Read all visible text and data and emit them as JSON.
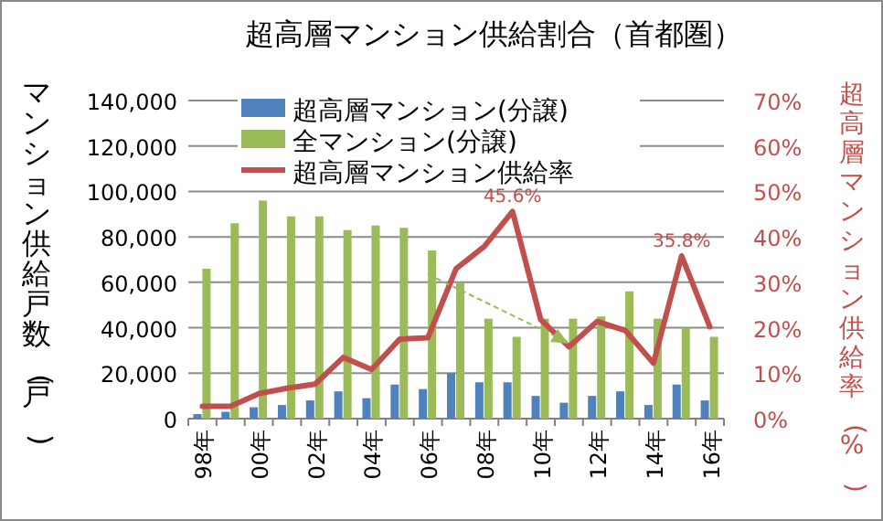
{
  "chart_data": {
    "type": "bar",
    "title": "超高層マンション供給割合（首都圏）",
    "ylabel": "マンション供給戸数(戸)",
    "y2label": "超高層マンション供給率(%)",
    "categories": [
      "98年",
      null,
      "00年",
      null,
      "02年",
      null,
      "04年",
      null,
      "06年",
      null,
      "08年",
      null,
      "10年",
      null,
      "12年",
      null,
      "14年",
      null,
      "16年"
    ],
    "series": [
      {
        "name": "超高層マンション(分譲)",
        "color": "#4f81bd",
        "values": [
          2000,
          3000,
          5000,
          6000,
          8000,
          12000,
          9000,
          15000,
          13000,
          20000,
          16000,
          16000,
          10000,
          7000,
          10000,
          12000,
          6000,
          15000,
          8000
        ]
      },
      {
        "name": "全マンション(分譲)",
        "color": "#9bbb59",
        "values": [
          66000,
          86000,
          96000,
          89000,
          89000,
          83000,
          85000,
          84000,
          74000,
          60000,
          44000,
          36000,
          44000,
          44000,
          45000,
          56000,
          44000,
          40000,
          36000
        ]
      },
      {
        "name": "超高層マンション供給率",
        "type": "line",
        "axis": "y2",
        "color": "#c0504d",
        "values": [
          2.7,
          2.7,
          5.5,
          6.7,
          7.6,
          13.5,
          10.8,
          17.5,
          17.8,
          33.0,
          37.9,
          45.6,
          21.8,
          15.8,
          21.4,
          19.4,
          12.2,
          35.8,
          20.2
        ],
        "value_labels": [
          null,
          null,
          null,
          null,
          null,
          null,
          null,
          null,
          null,
          null,
          null,
          "45.6%",
          null,
          null,
          null,
          null,
          null,
          "35.8%",
          null
        ]
      }
    ],
    "ylim": [
      0,
      140000
    ],
    "yticks": [
      {
        "value": 0,
        "label": "0"
      },
      {
        "value": 20000,
        "label": "20,000"
      },
      {
        "value": 40000,
        "label": "40,000"
      },
      {
        "value": 60000,
        "label": "60,000"
      },
      {
        "value": 80000,
        "label": "80,000"
      },
      {
        "value": 100000,
        "label": "100,000"
      },
      {
        "value": 120000,
        "label": "120,000"
      },
      {
        "value": 140000,
        "label": "140,000"
      }
    ],
    "y2lim": [
      0,
      70
    ],
    "y2ticks": [
      {
        "value": 0,
        "label": "0%"
      },
      {
        "value": 10,
        "label": "10%"
      },
      {
        "value": 20,
        "label": "20%"
      },
      {
        "value": 30,
        "label": "30%"
      },
      {
        "value": 40,
        "label": "40%"
      },
      {
        "value": 50,
        "label": "50%"
      },
      {
        "value": 60,
        "label": "60%"
      },
      {
        "value": 70,
        "label": "70%"
      }
    ],
    "grid": "y",
    "legend": "top"
  }
}
